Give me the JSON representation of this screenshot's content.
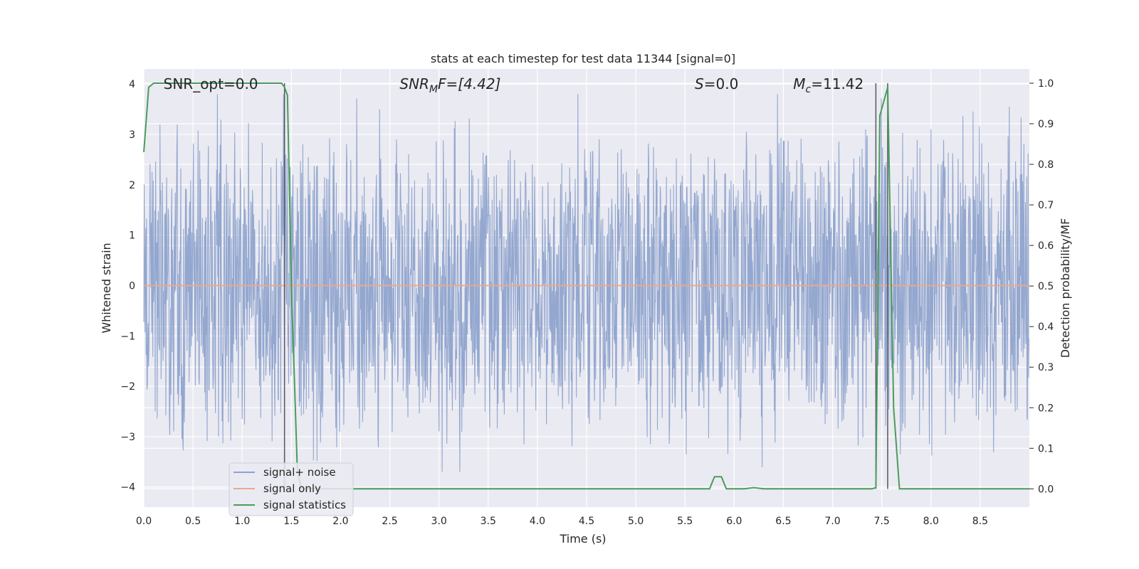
{
  "chart_data": {
    "type": "line",
    "title": "stats at each timestep for test data 11344 [signal=0]",
    "xlabel": "Time (s)",
    "ylabel": "Whitened strain",
    "y2label": "Detection probability/MF",
    "xlim": [
      0.0,
      9.0
    ],
    "ylim": [
      -4.4,
      4.3
    ],
    "y2lim": [
      -0.045,
      1.035
    ],
    "xticks": [
      0.0,
      0.5,
      1.0,
      1.5,
      2.0,
      2.5,
      3.0,
      3.5,
      4.0,
      4.5,
      5.0,
      5.5,
      6.0,
      6.5,
      7.0,
      7.5,
      8.0,
      8.5
    ],
    "xtick_labels": [
      "0.0",
      "0.5",
      "1.0",
      "1.5",
      "2.0",
      "2.5",
      "3.0",
      "3.5",
      "4.0",
      "4.5",
      "5.0",
      "5.5",
      "6.0",
      "6.5",
      "7.0",
      "7.5",
      "8.0",
      "8.5"
    ],
    "yticks": [
      -4,
      -3,
      -2,
      -1,
      0,
      1,
      2,
      3,
      4
    ],
    "ytick_labels": [
      "−4",
      "−3",
      "−2",
      "−1",
      "0",
      "1",
      "2",
      "3",
      "4"
    ],
    "y2ticks": [
      0.0,
      0.1,
      0.2,
      0.3,
      0.4,
      0.5,
      0.6,
      0.7,
      0.8,
      0.9,
      1.0
    ],
    "y2tick_labels": [
      "0.0",
      "0.1",
      "0.2",
      "0.3",
      "0.4",
      "0.5",
      "0.6",
      "0.7",
      "0.8",
      "0.9",
      "1.0"
    ],
    "grid": true,
    "legend_position": "lower-left",
    "annotations": [
      {
        "text": "SNR_opt=0.0",
        "x": 0.2,
        "y": 4.0
      },
      {
        "text": "SNR",
        "sub": "M",
        "suffix": "F=[4.42]",
        "x": 2.6,
        "y": 4.0,
        "italic": true
      },
      {
        "text": "S",
        "suffix": "=0.0",
        "x": 5.6,
        "y": 4.0,
        "italic": true
      },
      {
        "text": "M",
        "sub": "c",
        "suffix": "=11.42",
        "x": 6.6,
        "y": 4.0,
        "italic": true
      }
    ],
    "vlines": [
      1.43,
      7.44,
      7.56
    ],
    "series": [
      {
        "name": "signal+ noise",
        "color": "#8ea3cc",
        "axis": "left",
        "kind": "noise",
        "sample_rate": 2048,
        "envelope_sigma": 0.9,
        "peak_range": [
          -3.7,
          3.8
        ]
      },
      {
        "name": "signal only",
        "color": "#e9a88d",
        "axis": "left",
        "x": [
          0.0,
          9.0
        ],
        "y": [
          0.0,
          0.0
        ]
      },
      {
        "name": "signal statistics",
        "color": "#4b9c5b",
        "axis": "right",
        "x": [
          0.0,
          0.05,
          0.1,
          0.2,
          1.4,
          1.43,
          1.46,
          1.5,
          1.56,
          1.6,
          5.75,
          5.8,
          5.87,
          5.92,
          6.1,
          6.2,
          6.3,
          7.4,
          7.44,
          7.48,
          7.56,
          7.62,
          7.68,
          9.0
        ],
        "y": [
          0.83,
          0.99,
          1.0,
          1.0,
          1.0,
          0.99,
          0.97,
          0.5,
          0.05,
          0.0,
          0.0,
          0.03,
          0.03,
          0.0,
          0.0,
          0.003,
          0.0,
          0.0,
          0.003,
          0.92,
          0.99,
          0.2,
          0.0,
          0.0
        ]
      }
    ]
  },
  "colors": {
    "plot_bg": "#eaeaf2",
    "grid": "#ffffff",
    "vline": "#55585f"
  }
}
